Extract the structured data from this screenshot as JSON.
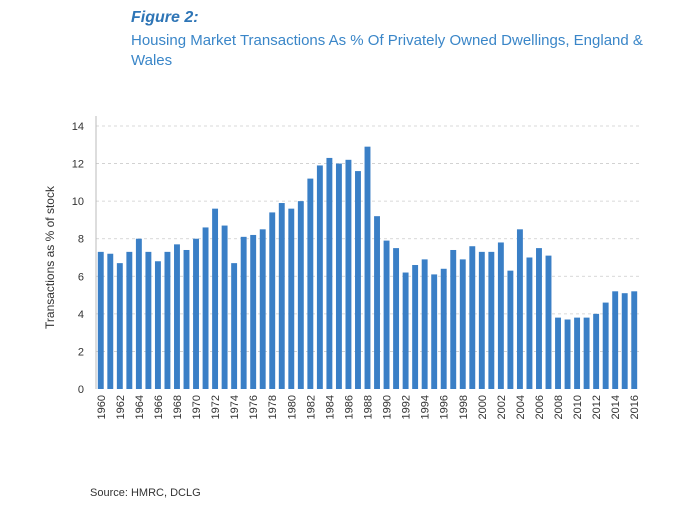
{
  "figure": {
    "label": "Figure 2:",
    "title": "Housing Market Transactions As % Of Privately Owned Dwellings, England & Wales"
  },
  "source": "Source: HMRC, DCLG",
  "colors": {
    "bar": "#3a7fc6",
    "grid": "#cccccc",
    "title": "#3a86c8"
  },
  "chart_data": {
    "type": "bar",
    "title": "Housing Market Transactions As % Of Privately Owned Dwellings, England & Wales",
    "xlabel": "",
    "ylabel": "Transactions as % of stock",
    "ylim": [
      0,
      14
    ],
    "yticks": [
      0,
      2,
      4,
      6,
      8,
      10,
      12,
      14
    ],
    "grid": true,
    "categories": [
      "1960",
      "1961",
      "1962",
      "1963",
      "1964",
      "1965",
      "1966",
      "1967",
      "1968",
      "1969",
      "1970",
      "1971",
      "1972",
      "1973",
      "1974",
      "1975",
      "1976",
      "1977",
      "1978",
      "1979",
      "1980",
      "1981",
      "1982",
      "1983",
      "1984",
      "1985",
      "1986",
      "1987",
      "1988",
      "1989",
      "1990",
      "1991",
      "1992",
      "1993",
      "1994",
      "1995",
      "1996",
      "1997",
      "1998",
      "1999",
      "2000",
      "2001",
      "2002",
      "2003",
      "2004",
      "2005",
      "2006",
      "2007",
      "2008",
      "2009",
      "2010",
      "2011",
      "2012",
      "2013",
      "2014",
      "2015",
      "2016"
    ],
    "values": [
      7.3,
      7.2,
      6.7,
      7.3,
      8.0,
      7.3,
      6.8,
      7.3,
      7.7,
      7.4,
      8.0,
      8.6,
      9.6,
      8.7,
      6.7,
      8.1,
      8.2,
      8.5,
      9.4,
      9.9,
      9.6,
      10.0,
      11.2,
      11.9,
      12.3,
      12.0,
      12.2,
      11.6,
      12.9,
      9.2,
      7.9,
      7.5,
      6.2,
      6.6,
      6.9,
      6.1,
      6.4,
      7.4,
      6.9,
      7.6,
      7.3,
      7.3,
      7.8,
      6.3,
      8.5,
      7.0,
      7.5,
      7.1,
      3.8,
      3.7,
      3.8,
      3.8,
      4.0,
      4.6,
      5.2,
      5.1,
      5.2
    ],
    "xtick_labels": [
      "1960",
      "1962",
      "1964",
      "1966",
      "1968",
      "1970",
      "1972",
      "1974",
      "1976",
      "1978",
      "1980",
      "1982",
      "1984",
      "1986",
      "1988",
      "1990",
      "1992",
      "1994",
      "1996",
      "1998",
      "2000",
      "2002",
      "2004",
      "2006",
      "2008",
      "2010",
      "2012",
      "2014",
      "2016"
    ]
  }
}
